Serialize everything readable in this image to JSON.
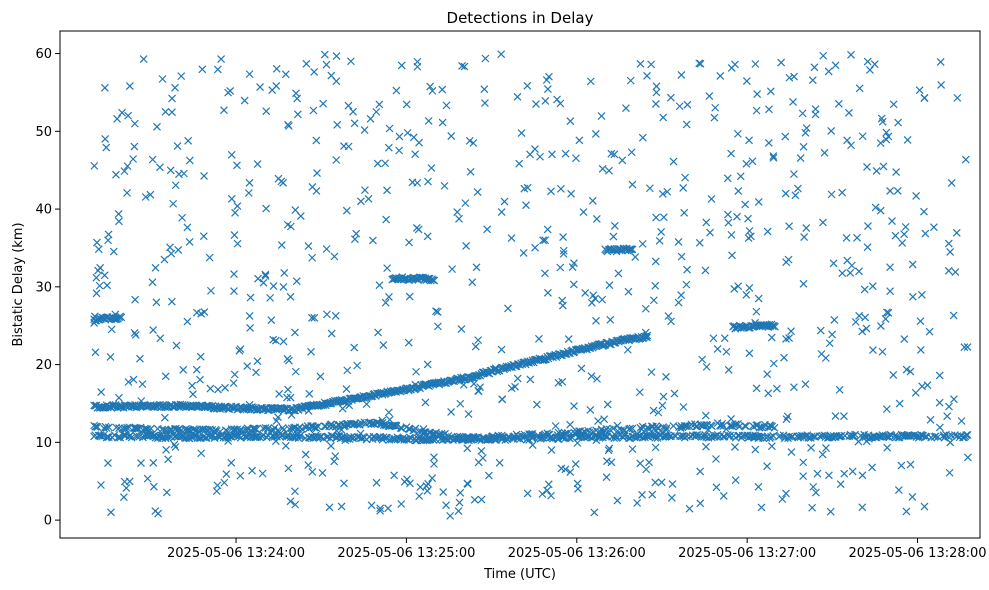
{
  "chart_data": {
    "type": "scatter",
    "title": "Detections in Delay",
    "xlabel": "Time (UTC)",
    "ylabel": "Bistatic Delay (km)",
    "marker": "x",
    "color": "#1f77b4",
    "grid": false,
    "legend": "none",
    "xlim": [
      "2025-05-06 13:22:58",
      "2025-05-06 13:28:22"
    ],
    "ylim": [
      -2.3,
      62.9
    ],
    "x_ticks": [
      "2025-05-06 13:24:00",
      "2025-05-06 13:25:00",
      "2025-05-06 13:26:00",
      "2025-05-06 13:27:00",
      "2025-05-06 13:28:00"
    ],
    "y_ticks": [
      0,
      10,
      20,
      30,
      40,
      50,
      60
    ],
    "time_start": "2025-05-06 13:23:10",
    "time_end": "2025-05-06 13:28:18",
    "series": [
      {
        "name": "Clutter band near 10.8 km",
        "points": [
          [
            "13:23:10",
            10.8
          ],
          [
            "13:23:40",
            10.7
          ],
          [
            "13:24:10",
            10.8
          ],
          [
            "13:24:40",
            10.6
          ],
          [
            "13:25:10",
            10.4
          ],
          [
            "13:25:40",
            10.5
          ],
          [
            "13:26:10",
            10.7
          ],
          [
            "13:26:40",
            10.8
          ],
          [
            "13:27:10",
            10.7
          ],
          [
            "13:27:40",
            10.8
          ],
          [
            "13:28:10",
            10.8
          ],
          [
            "13:28:18",
            10.8
          ]
        ]
      },
      {
        "name": "Track from 14.5 km rising to 23.5 km",
        "points": [
          [
            "13:23:10",
            14.6
          ],
          [
            "13:23:40",
            14.7
          ],
          [
            "13:24:00",
            14.4
          ],
          [
            "13:24:20",
            14.2
          ],
          [
            "13:24:40",
            15.5
          ],
          [
            "13:25:00",
            16.8
          ],
          [
            "13:25:20",
            18.2
          ],
          [
            "13:25:40",
            20.0
          ],
          [
            "13:26:00",
            21.8
          ],
          [
            "13:26:15",
            23.0
          ],
          [
            "13:26:25",
            23.6
          ]
        ]
      },
      {
        "name": "Track near 11 to 12.5 km",
        "points": [
          [
            "13:23:10",
            12.0
          ],
          [
            "13:23:50",
            11.5
          ],
          [
            "13:24:20",
            11.8
          ],
          [
            "13:24:50",
            12.5
          ],
          [
            "13:25:20",
            10.5
          ],
          [
            "13:25:50",
            11.0
          ],
          [
            "13:26:20",
            11.8
          ],
          [
            "13:26:50",
            12.3
          ],
          [
            "13:27:10",
            12.0
          ]
        ]
      },
      {
        "name": "Short segment near 26 km",
        "points": [
          [
            "13:23:10",
            25.8
          ],
          [
            "13:23:20",
            26.1
          ]
        ]
      },
      {
        "name": "Short segment near 31 km",
        "points": [
          [
            "13:24:55",
            31.1
          ],
          [
            "13:25:10",
            31.0
          ]
        ]
      },
      {
        "name": "Short segment near 34.8 km",
        "points": [
          [
            "13:26:10",
            34.7
          ],
          [
            "13:26:20",
            34.8
          ]
        ]
      },
      {
        "name": "Short segment near 25 km",
        "points": [
          [
            "13:26:55",
            24.8
          ],
          [
            "13:27:10",
            25.0
          ]
        ]
      },
      {
        "name": "Random detections",
        "count_approx": 850,
        "y_range": [
          0.5,
          60
        ]
      }
    ]
  }
}
